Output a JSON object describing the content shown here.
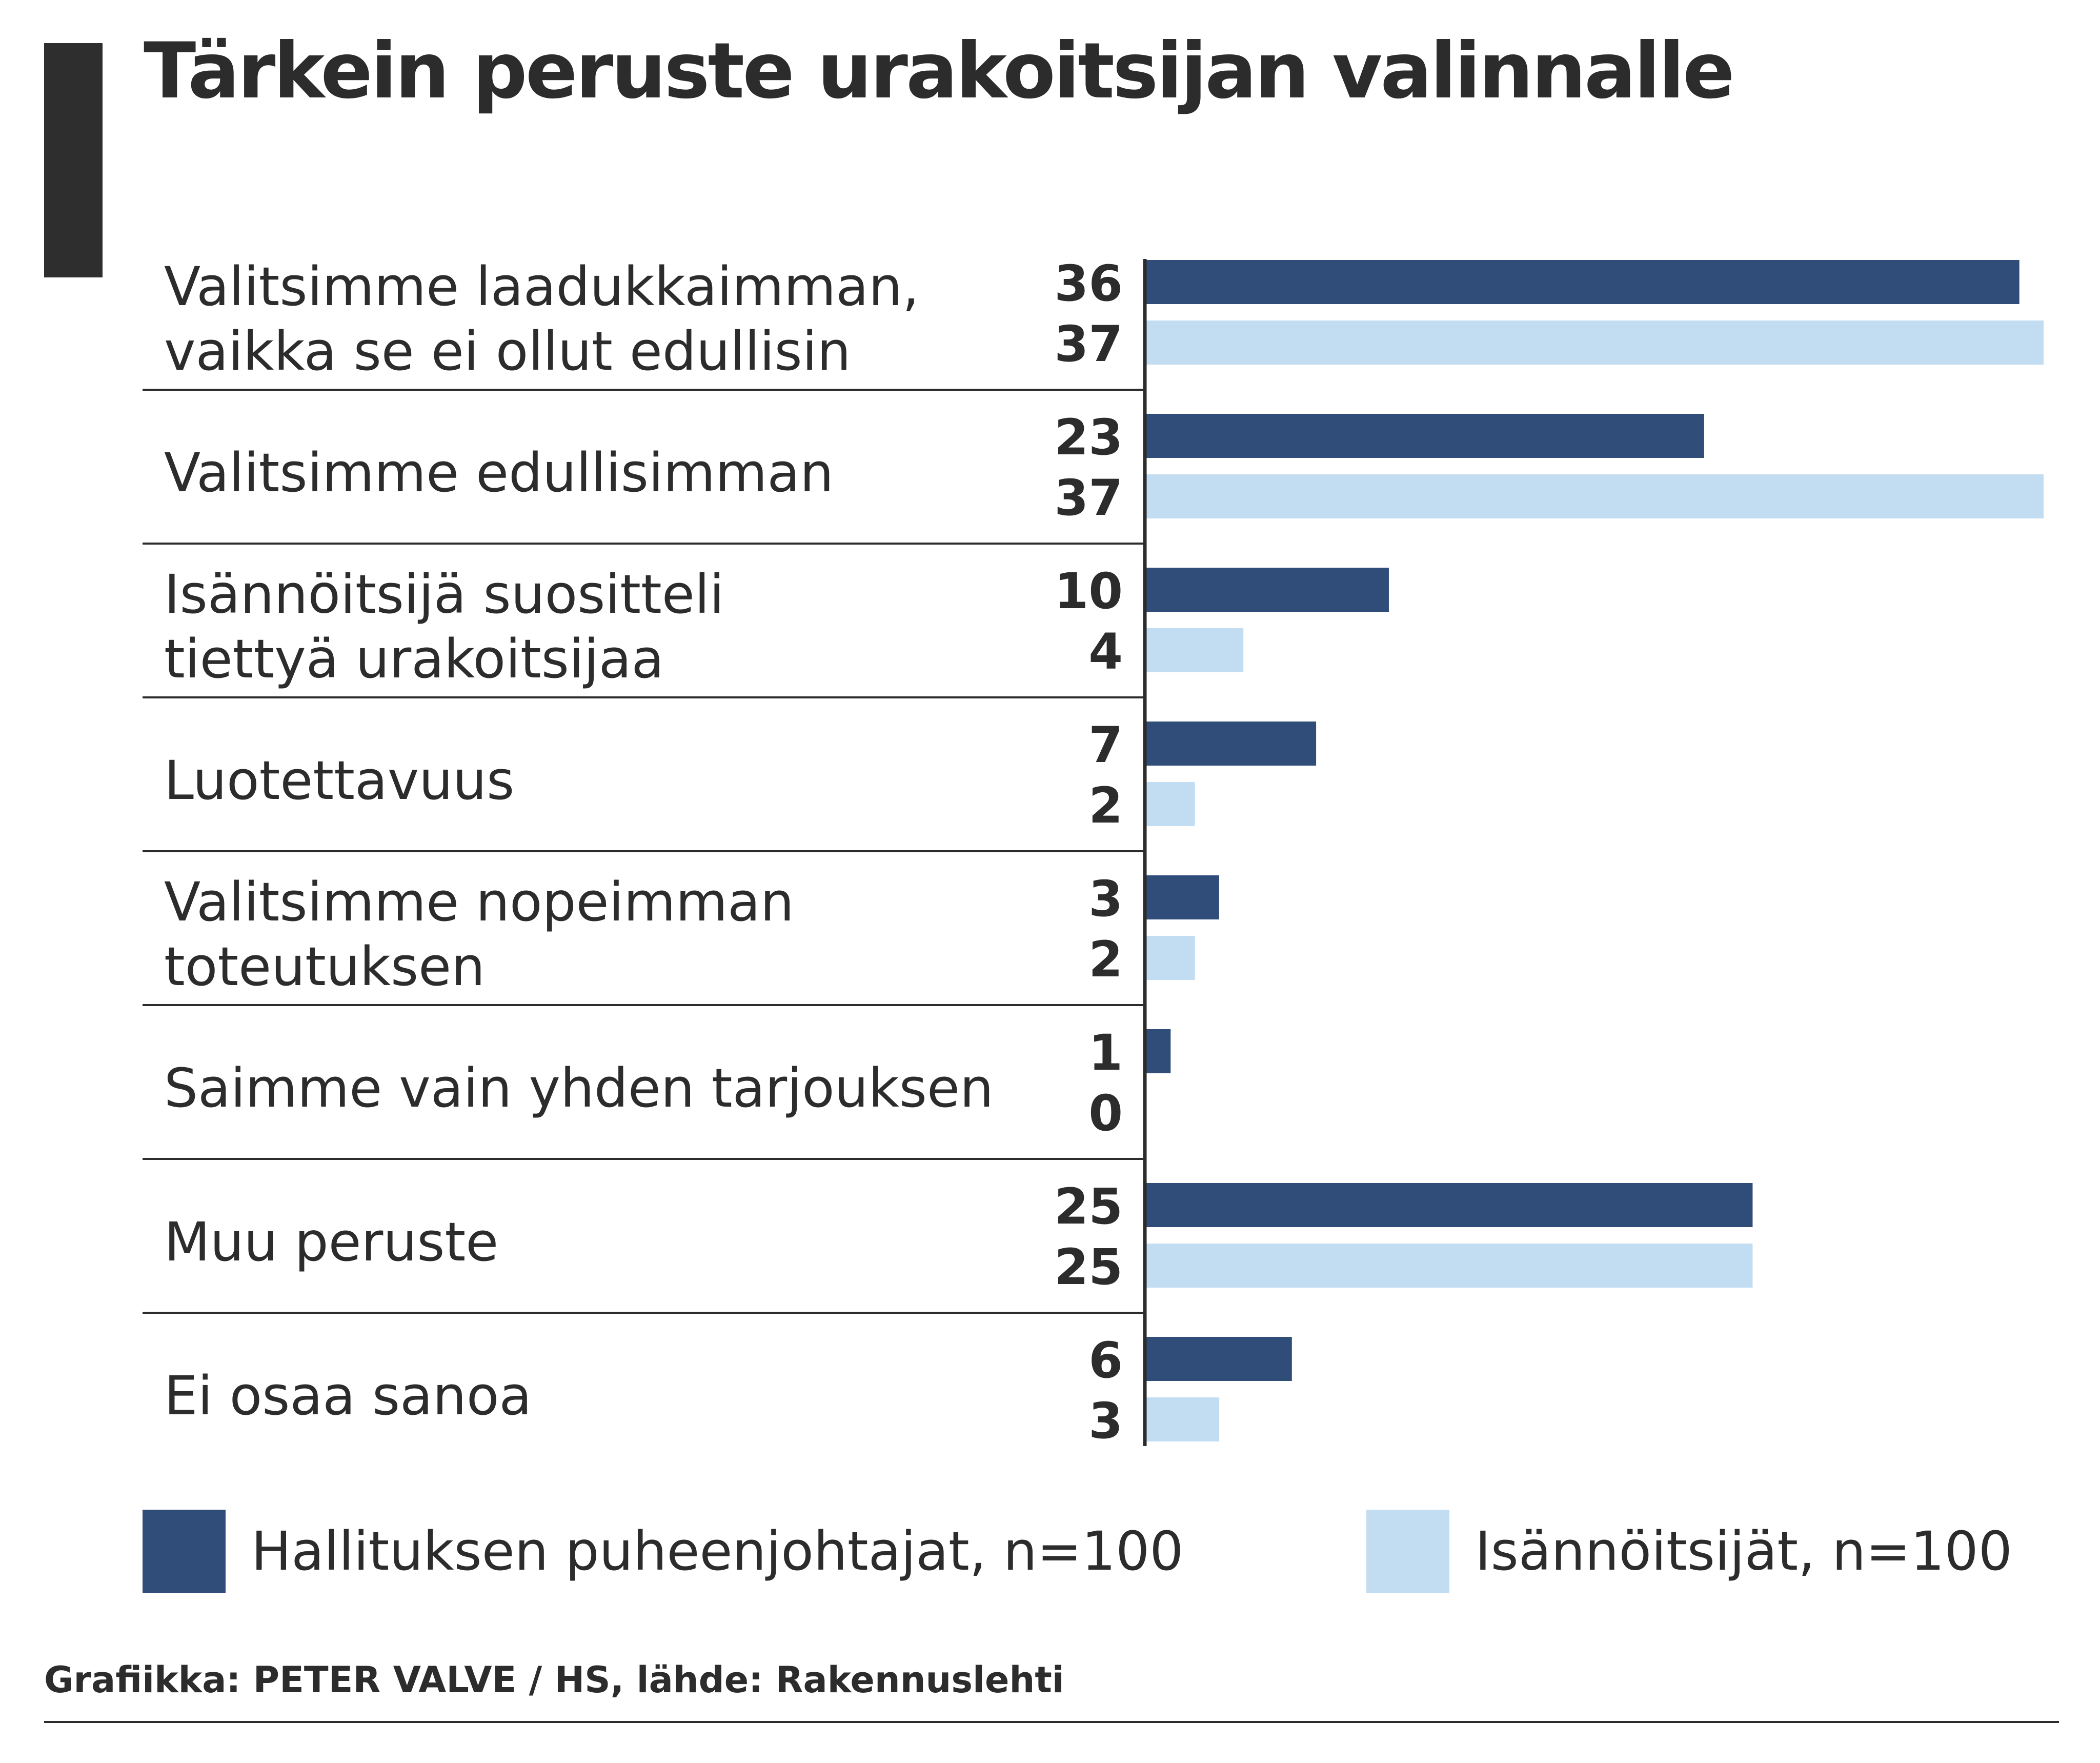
{
  "title": "Tärkein peruste urakoitsijan valinnalle",
  "credit": "Grafiikka: PETER VALVE / HS, lähde: Rakennuslehti",
  "chart_data": {
    "type": "bar",
    "orientation": "horizontal",
    "title": "Tärkein peruste urakoitsijan valinnalle",
    "categories": [
      [
        "Valitsimme laadukkaimman,",
        "vaikka se ei ollut edullisin"
      ],
      [
        "Valitsimme edullisimman"
      ],
      [
        "Isännöitsijä suositteli",
        "tiettyä urakoitsijaa"
      ],
      [
        "Luotettavuus"
      ],
      [
        "Valitsimme nopeimman",
        "toteutuksen"
      ],
      [
        "Saimme vain yhden tarjouksen"
      ],
      [
        "Muu peruste"
      ],
      [
        "Ei osaa sanoa"
      ]
    ],
    "series": [
      {
        "name": "Hallituksen puheenjohtajat, n=100",
        "color": "#304c79",
        "values": [
          36,
          23,
          10,
          7,
          3,
          1,
          25,
          6
        ]
      },
      {
        "name": "Isännöitsijät, n=100",
        "color": "#c2ddf2",
        "values": [
          37,
          37,
          4,
          2,
          2,
          0,
          25,
          3
        ]
      }
    ],
    "xlim": [
      0,
      37
    ],
    "legend_position": "bottom",
    "grid": false
  }
}
